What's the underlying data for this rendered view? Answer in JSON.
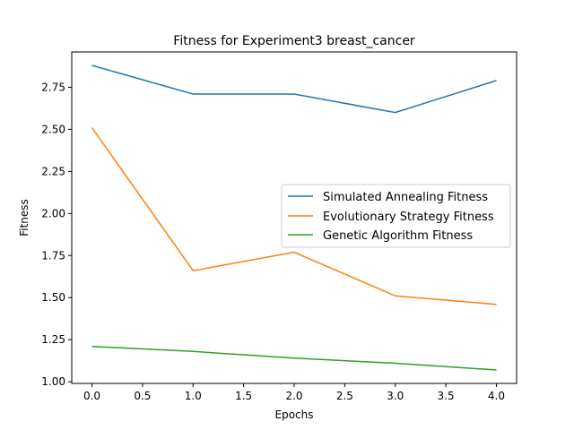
{
  "chart_data": {
    "type": "line",
    "title": "Fitness for Experiment3 breast_cancer",
    "xlabel": "Epochs",
    "ylabel": "Fitness",
    "x": [
      0,
      1,
      2,
      3,
      4
    ],
    "xlim": [
      -0.2,
      4.2
    ],
    "ylim": [
      0.99,
      2.96
    ],
    "xticks": [
      "0.0",
      "0.5",
      "1.0",
      "1.5",
      "2.0",
      "2.5",
      "3.0",
      "3.5",
      "4.0"
    ],
    "yticks": [
      "1.00",
      "1.25",
      "1.50",
      "1.75",
      "2.00",
      "2.25",
      "2.50",
      "2.75"
    ],
    "grid": false,
    "legend_position": "center-right",
    "series": [
      {
        "name": "Simulated Annealing Fitness",
        "color": "#1f77b4",
        "values": [
          2.88,
          2.71,
          2.71,
          2.6,
          2.79
        ]
      },
      {
        "name": "Evolutionary Strategy Fitness",
        "color": "#ff7f0e",
        "values": [
          2.51,
          1.66,
          1.77,
          1.51,
          1.46
        ]
      },
      {
        "name": "Genetic Algorithm Fitness",
        "color": "#2ca02c",
        "values": [
          1.21,
          1.18,
          1.14,
          1.11,
          1.07
        ]
      }
    ]
  }
}
